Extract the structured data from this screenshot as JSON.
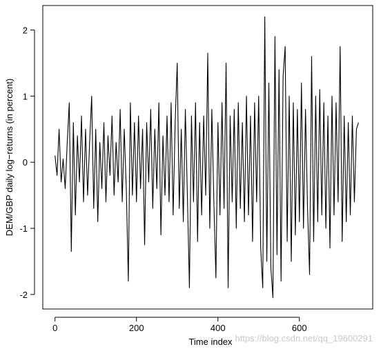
{
  "chart_data": {
    "type": "line",
    "xlabel": "Time index",
    "ylabel": "DEM/GBP daily log−returns (in percent)",
    "watermark": "https://blog.csdn.net/qq_19600291",
    "x": [
      0,
      5,
      10,
      15,
      20,
      25,
      30,
      35,
      40,
      45,
      50,
      55,
      60,
      65,
      70,
      75,
      80,
      85,
      90,
      95,
      100,
      105,
      110,
      115,
      120,
      125,
      130,
      135,
      140,
      145,
      150,
      155,
      160,
      165,
      170,
      175,
      180,
      185,
      190,
      195,
      200,
      205,
      210,
      215,
      220,
      225,
      230,
      235,
      240,
      245,
      250,
      255,
      260,
      265,
      270,
      275,
      280,
      285,
      290,
      295,
      300,
      305,
      310,
      315,
      320,
      325,
      330,
      335,
      340,
      345,
      350,
      355,
      360,
      365,
      370,
      375,
      380,
      385,
      390,
      395,
      400,
      405,
      410,
      415,
      420,
      425,
      430,
      435,
      440,
      445,
      450,
      455,
      460,
      465,
      470,
      475,
      480,
      485,
      490,
      495,
      500,
      505,
      510,
      515,
      520,
      525,
      530,
      535,
      540,
      545,
      550,
      555,
      560,
      565,
      570,
      575,
      580,
      585,
      590,
      595,
      600,
      605,
      610,
      615,
      620,
      625,
      630,
      635,
      640,
      645,
      650,
      655,
      660,
      665,
      670,
      675,
      680,
      685,
      690,
      695,
      700,
      705,
      710,
      715,
      720,
      725,
      730,
      735,
      740,
      745
    ],
    "series": [
      {
        "color": "#000000",
        "values": [
          0.1,
          -0.2,
          0.5,
          -0.3,
          0.05,
          -0.4,
          0.3,
          0.9,
          -1.35,
          0.6,
          -0.8,
          0.4,
          -0.3,
          0.7,
          -0.6,
          0.5,
          -0.5,
          0.3,
          1.0,
          -0.7,
          0.5,
          -0.9,
          0.3,
          -0.4,
          0.6,
          -0.6,
          0.4,
          -0.2,
          0.7,
          -0.5,
          0.3,
          -0.3,
          0.8,
          -0.6,
          0.5,
          -0.4,
          -1.8,
          0.9,
          -0.5,
          0.6,
          -0.6,
          0.7,
          -0.4,
          0.5,
          -1.25,
          0.6,
          -0.3,
          0.8,
          -0.7,
          0.5,
          -0.4,
          0.9,
          -1.1,
          0.4,
          -0.5,
          0.7,
          -0.6,
          0.9,
          -0.8,
          0.6,
          1.5,
          -0.7,
          0.5,
          -0.9,
          0.8,
          -0.5,
          -1.9,
          0.7,
          -0.6,
          0.9,
          -1.2,
          0.6,
          -0.8,
          0.7,
          -0.5,
          1.65,
          -1.0,
          0.8,
          -0.6,
          -1.75,
          0.6,
          -0.8,
          0.9,
          -0.7,
          1.5,
          -1.9,
          0.7,
          -0.6,
          0.8,
          -1.0,
          0.9,
          -0.7,
          0.6,
          -0.9,
          1.0,
          -0.8,
          0.7,
          -1.2,
          0.9,
          -0.6,
          1.0,
          -1.3,
          -1.9,
          2.2,
          -1.5,
          1.2,
          -1.6,
          -2.05,
          1.9,
          -1.4,
          1.4,
          -1.8,
          1.3,
          1.75,
          -1.2,
          1.0,
          -1.5,
          0.9,
          -1.1,
          0.8,
          -0.9,
          1.2,
          -1.0,
          0.8,
          -0.7,
          -1.7,
          1.6,
          -1.2,
          1.0,
          -0.9,
          1.1,
          -0.8,
          0.9,
          -1.0,
          0.7,
          -1.3,
          1.0,
          -0.8,
          0.9,
          -0.6,
          1.75,
          -1.2,
          0.7,
          -0.9,
          0.6,
          -0.8,
          0.7,
          -0.6,
          0.5,
          0.6
        ]
      }
    ],
    "xlim": [
      -30,
      780
    ],
    "ylim": [
      -2.22,
      2.37
    ],
    "xticks": [
      0,
      200,
      400,
      600
    ],
    "yticks": [
      -2,
      -1,
      0,
      1,
      2
    ]
  }
}
